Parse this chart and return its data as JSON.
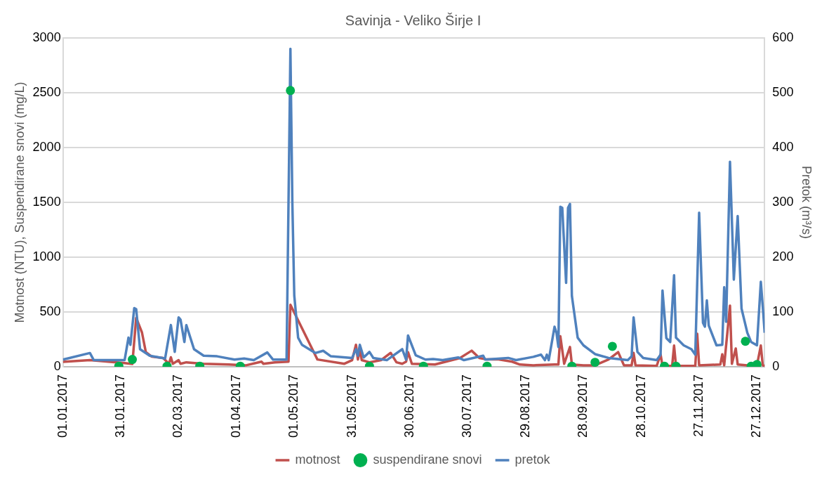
{
  "chart_data": {
    "type": "line",
    "title": "Savinja - Veliko Širje I",
    "ylabel": "Motnost (NTU), Suspendirane snovi (mg/L)",
    "y2label": "Pretok (m³/s)",
    "xlim": [
      "2017-01-01",
      "2017-12-31"
    ],
    "xticks": [
      {
        "value": "2017-01-01",
        "label": "01.01.2017"
      },
      {
        "value": "2017-01-31",
        "label": "31.01.2017"
      },
      {
        "value": "2017-03-02",
        "label": "02.03.2017"
      },
      {
        "value": "2017-04-01",
        "label": "01.04.2017"
      },
      {
        "value": "2017-05-01",
        "label": "01.05.2017"
      },
      {
        "value": "2017-05-31",
        "label": "31.05.2017"
      },
      {
        "value": "2017-06-30",
        "label": "30.06.2017"
      },
      {
        "value": "2017-07-30",
        "label": "30.07.2017"
      },
      {
        "value": "2017-08-29",
        "label": "29.08.2017"
      },
      {
        "value": "2017-09-28",
        "label": "28.09.2017"
      },
      {
        "value": "2017-10-28",
        "label": "28.10.2017"
      },
      {
        "value": "2017-11-27",
        "label": "27.11.2017"
      },
      {
        "value": "2017-12-27",
        "label": "27.12.2017"
      }
    ],
    "ylim": [
      0,
      3000
    ],
    "yticks": [
      0,
      500,
      1000,
      1500,
      2000,
      2500,
      3000
    ],
    "y2lim": [
      0,
      600
    ],
    "y2ticks": [
      0,
      100,
      200,
      300,
      400,
      500,
      600
    ],
    "grid": "y",
    "legend": "bottom",
    "series": [
      {
        "name": "motnost",
        "type": "line",
        "color": "#c0504d",
        "marker": "none",
        "x": [
          "2017-01-01",
          "2017-01-15",
          "2017-02-02",
          "2017-02-06",
          "2017-02-08",
          "2017-02-11",
          "2017-02-13",
          "2017-02-16",
          "2017-02-22",
          "2017-02-25",
          "2017-02-26",
          "2017-02-27",
          "2017-03-02",
          "2017-03-03",
          "2017-03-06",
          "2017-03-15",
          "2017-03-28",
          "2017-04-06",
          "2017-04-14",
          "2017-04-15",
          "2017-04-21",
          "2017-04-28",
          "2017-04-29",
          "2017-05-13",
          "2017-05-27",
          "2017-05-31",
          "2017-06-02",
          "2017-06-03",
          "2017-06-04",
          "2017-06-05",
          "2017-06-09",
          "2017-06-15",
          "2017-06-20",
          "2017-06-23",
          "2017-06-26",
          "2017-06-28",
          "2017-06-29",
          "2017-07-01",
          "2017-07-13",
          "2017-07-26",
          "2017-08-01",
          "2017-08-05",
          "2017-08-09",
          "2017-08-15",
          "2017-08-22",
          "2017-08-26",
          "2017-09-02",
          "2017-09-13",
          "2017-09-15",
          "2017-09-16",
          "2017-09-18",
          "2017-09-21",
          "2017-09-22",
          "2017-09-28",
          "2017-10-04",
          "2017-10-11",
          "2017-10-16",
          "2017-10-19",
          "2017-10-23",
          "2017-10-24",
          "2017-10-25",
          "2017-11-05",
          "2017-11-07",
          "2017-11-08",
          "2017-11-13",
          "2017-11-14",
          "2017-11-15",
          "2017-11-25",
          "2017-11-26",
          "2017-11-27",
          "2017-12-08",
          "2017-12-09",
          "2017-12-10",
          "2017-12-13",
          "2017-12-14",
          "2017-12-16",
          "2017-12-17",
          "2017-12-22",
          "2017-12-27",
          "2017-12-29",
          "2017-12-30",
          "2017-12-31"
        ],
        "values": [
          45,
          60,
          33,
          25,
          445,
          312,
          133,
          93,
          80,
          27,
          86,
          27,
          60,
          27,
          40,
          27,
          20,
          13,
          46,
          27,
          40,
          46,
          565,
          66,
          27,
          60,
          200,
          66,
          160,
          60,
          40,
          60,
          126,
          40,
          27,
          46,
          133,
          27,
          20,
          80,
          146,
          80,
          66,
          66,
          46,
          20,
          13,
          20,
          20,
          278,
          27,
          180,
          20,
          13,
          13,
          66,
          133,
          13,
          13,
          126,
          13,
          7,
          113,
          7,
          7,
          193,
          7,
          7,
          300,
          13,
          20,
          113,
          13,
          557,
          27,
          166,
          20,
          13,
          13,
          193,
          13,
          7
        ]
      },
      {
        "name": "suspendirane snovi",
        "type": "scatter",
        "color": "#00b050",
        "marker": "circle",
        "x": [
          "2017-01-30",
          "2017-02-06",
          "2017-02-24",
          "2017-03-13",
          "2017-04-03",
          "2017-04-29",
          "2017-06-09",
          "2017-07-07",
          "2017-08-09",
          "2017-09-22",
          "2017-10-04",
          "2017-10-13",
          "2017-11-09",
          "2017-11-15",
          "2017-12-21",
          "2017-12-24",
          "2017-12-27"
        ],
        "values": [
          5,
          66,
          5,
          5,
          5,
          2520,
          5,
          5,
          5,
          5,
          40,
          186,
          5,
          5,
          232,
          5,
          20
        ]
      },
      {
        "name": "pretok",
        "type": "line",
        "axis": "y2",
        "color": "#4f81bd",
        "marker": "none",
        "x": [
          "2017-01-01",
          "2017-01-15",
          "2017-01-17",
          "2017-02-02",
          "2017-02-04",
          "2017-02-05",
          "2017-02-07",
          "2017-02-08",
          "2017-02-10",
          "2017-02-15",
          "2017-02-23",
          "2017-02-26",
          "2017-02-28",
          "2017-03-02",
          "2017-03-03",
          "2017-03-05",
          "2017-03-06",
          "2017-03-10",
          "2017-03-15",
          "2017-03-22",
          "2017-03-31",
          "2017-04-05",
          "2017-04-10",
          "2017-04-17",
          "2017-04-20",
          "2017-04-27",
          "2017-04-29",
          "2017-04-30",
          "2017-05-01",
          "2017-05-03",
          "2017-05-05",
          "2017-05-12",
          "2017-05-16",
          "2017-05-20",
          "2017-05-31",
          "2017-06-02",
          "2017-06-03",
          "2017-06-04",
          "2017-06-06",
          "2017-06-09",
          "2017-06-11",
          "2017-06-18",
          "2017-06-26",
          "2017-06-28",
          "2017-06-29",
          "2017-07-03",
          "2017-07-08",
          "2017-07-12",
          "2017-07-17",
          "2017-07-25",
          "2017-07-28",
          "2017-08-07",
          "2017-08-08",
          "2017-08-20",
          "2017-08-24",
          "2017-09-02",
          "2017-09-06",
          "2017-09-08",
          "2017-09-09",
          "2017-09-10",
          "2017-09-13",
          "2017-09-14",
          "2017-09-15",
          "2017-09-16",
          "2017-09-17",
          "2017-09-19",
          "2017-09-20",
          "2017-09-21",
          "2017-09-22",
          "2017-09-25",
          "2017-09-28",
          "2017-10-04",
          "2017-10-11",
          "2017-10-21",
          "2017-10-23",
          "2017-10-24",
          "2017-10-26",
          "2017-10-29",
          "2017-11-05",
          "2017-11-07",
          "2017-11-08",
          "2017-11-10",
          "2017-11-12",
          "2017-11-14",
          "2017-11-15",
          "2017-11-19",
          "2017-11-23",
          "2017-11-25",
          "2017-11-27",
          "2017-11-29",
          "2017-11-30",
          "2017-12-01",
          "2017-12-02",
          "2017-12-06",
          "2017-12-09",
          "2017-12-10",
          "2017-12-11",
          "2017-12-13",
          "2017-12-15",
          "2017-12-17",
          "2017-12-19",
          "2017-12-22",
          "2017-12-24",
          "2017-12-27",
          "2017-12-29",
          "2017-12-30",
          "2017-12-31"
        ],
        "values": [
          13,
          25,
          12,
          12,
          53,
          40,
          107,
          105,
          32,
          20,
          15,
          76,
          27,
          90,
          86,
          45,
          76,
          32,
          20,
          19,
          13,
          15,
          12,
          26,
          13,
          13,
          580,
          300,
          130,
          53,
          40,
          25,
          29,
          19,
          16,
          32,
          20,
          40,
          17,
          27,
          16,
          12,
          32,
          13,
          57,
          21,
          13,
          14,
          12,
          17,
          12,
          20,
          13,
          16,
          12,
          18,
          22,
          12,
          22,
          12,
          73,
          62,
          36,
          292,
          290,
          153,
          290,
          297,
          129,
          53,
          39,
          23,
          16,
          12,
          19,
          90,
          27,
          16,
          12,
          22,
          139,
          52,
          45,
          167,
          53,
          39,
          32,
          22,
          281,
          80,
          73,
          121,
          75,
          39,
          40,
          145,
          82,
          374,
          159,
          275,
          106,
          62,
          45,
          39,
          155,
          110,
          62
        ]
      }
    ]
  }
}
